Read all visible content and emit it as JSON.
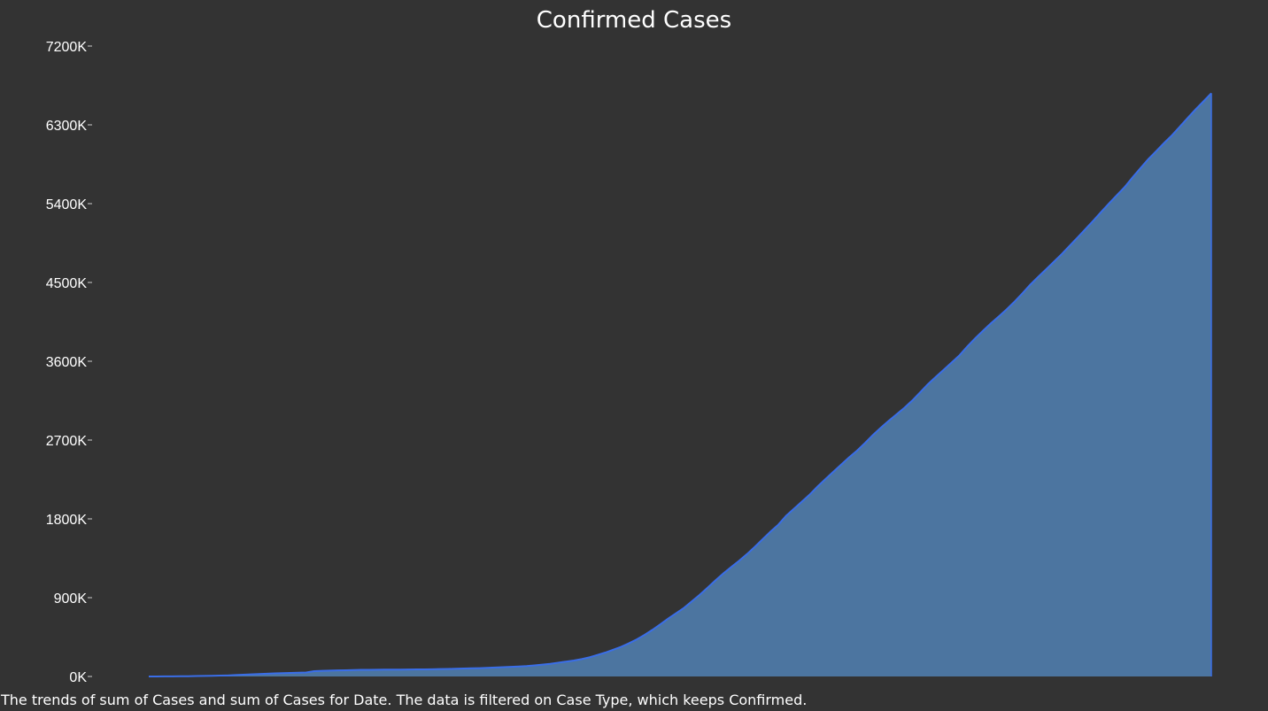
{
  "chart_data": {
    "type": "area",
    "title": "Confirmed Cases",
    "caption": "The trends of sum of Cases and sum of Cases for Date. The data is filtered on Case Type, which keeps Confirmed.",
    "xlabel": "",
    "ylabel": "",
    "ylim": [
      0,
      7200
    ],
    "y_unit_suffix": "K",
    "yticks": [
      0,
      900,
      1800,
      2700,
      3600,
      4500,
      5400,
      6300,
      7200
    ],
    "ytick_labels": [
      "0K",
      "900K",
      "1800K",
      "2700K",
      "3600K",
      "4500K",
      "5400K",
      "6300K",
      "7200K"
    ],
    "grid": false,
    "legend": "none",
    "x_points": 136,
    "series": [
      {
        "values": [
          0.6,
          0.6,
          0.9,
          1.3,
          2.0,
          2.9,
          5.6,
          6.2,
          8.2,
          9.8,
          11.9,
          16.6,
          19.9,
          24.4,
          28.0,
          31.2,
          34.9,
          37.6,
          40.6,
          43.1,
          45.2,
          60.4,
          64.5,
          67.1,
          69.2,
          71.3,
          73.3,
          75.2,
          75.7,
          76.7,
          77.8,
          78.6,
          78.9,
          79.6,
          80.4,
          81.4,
          82.7,
          84.1,
          86.0,
          88.4,
          90.4,
          93.0,
          95.3,
          98.0,
          102.0,
          106.1,
          109.8,
          113.6,
          118.6,
          125.9,
          135.0,
          144.0,
          157.4,
          169.3,
          182.1,
          198.5,
          218.8,
          245.9,
          272.9,
          305.0,
          338.6,
          378.5,
          423.8,
          475.7,
          533.3,
          595.6,
          662.0,
          722.3,
          783.3,
          858.5,
          933.1,
          1014.4,
          1097.3,
          1177.1,
          1249.3,
          1321.0,
          1397.4,
          1480.2,
          1567.7,
          1654.3,
          1734.9,
          1837.3,
          1917.3,
          1998.6,
          2079.9,
          2171.4,
          2257.1,
          2339.4,
          2421.4,
          2504.6,
          2580.3,
          2666.5,
          2757.7,
          2840.0,
          2918.1,
          2993.3,
          3067.9,
          3151.1,
          3244.0,
          3338.7,
          3421.3,
          3503.2,
          3584.6,
          3667.8,
          3769.3,
          3862.4,
          3948.9,
          4033.2,
          4111.5,
          4193.3,
          4280.9,
          4376.1,
          4474.9,
          4563.6,
          4649.0,
          4736.1,
          4824.1,
          4918.4,
          5012.2,
          5108.6,
          5204.5,
          5304.8,
          5402.1,
          5496.7,
          5590.3,
          5701.1,
          5805.3,
          5909.4,
          6000.0,
          6092.7,
          6180.9,
          6279.7,
          6379.3,
          6476.6,
          6568.1,
          6661.3
        ]
      }
    ],
    "colors": {
      "background": "#333333",
      "area_fill": "#4e79a7",
      "area_line": "#3a6ee8",
      "text": "#ffffff",
      "axis_tick": "#cccccc"
    }
  }
}
